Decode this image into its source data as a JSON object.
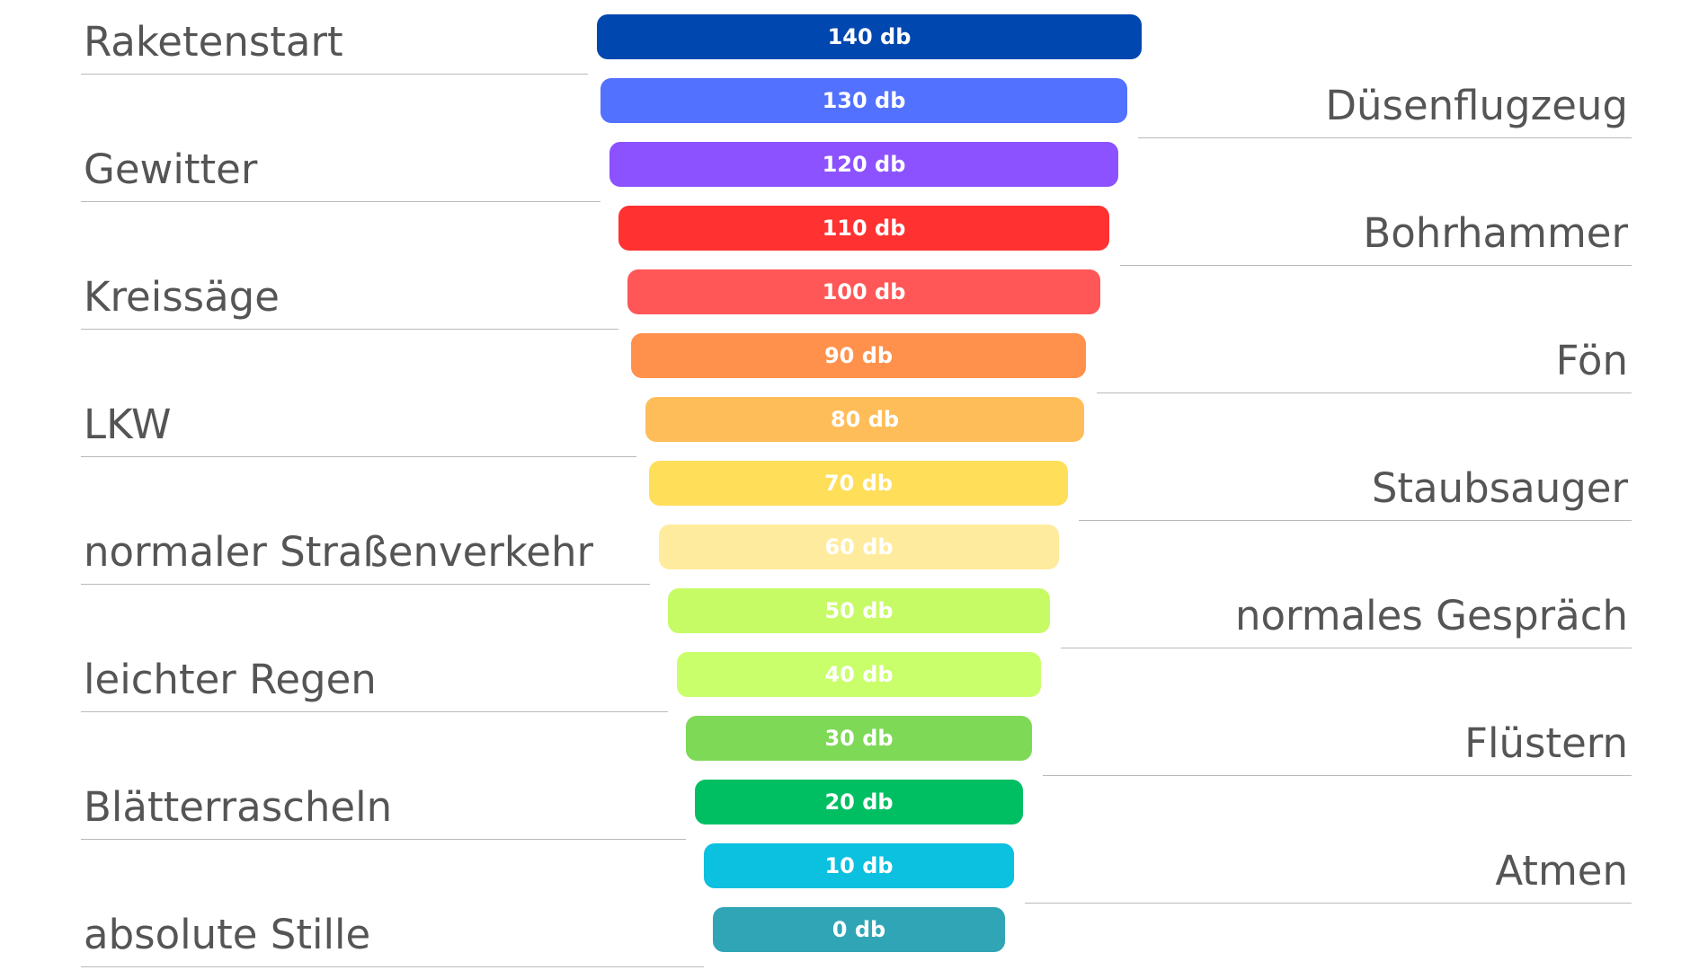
{
  "levels": [
    {
      "value": "140 db",
      "color": "#0047af",
      "label": "Raketenstart",
      "side": "left"
    },
    {
      "value": "130 db",
      "color": "#5271ff",
      "label": "Düsenflugzeug",
      "side": "right"
    },
    {
      "value": "120 db",
      "color": "#8c52ff",
      "label": "Gewitter",
      "side": "left"
    },
    {
      "value": "110 db",
      "color": "#ff3131",
      "label": "Bohrhammer",
      "side": "right"
    },
    {
      "value": "100 db",
      "color": "#ff5757",
      "label": "Kreissäge",
      "side": "left"
    },
    {
      "value": "90 db",
      "color": "#ff914d",
      "label": "Fön",
      "side": "right"
    },
    {
      "value": "80 db",
      "color": "#ffbd59",
      "label": "LKW",
      "side": "left"
    },
    {
      "value": "70 db",
      "color": "#ffde59",
      "label": "Staubsauger",
      "side": "right"
    },
    {
      "value": "60 db",
      "color": "#ffeb9d",
      "label": "normaler Straßenverkehr",
      "side": "left"
    },
    {
      "value": "50 db",
      "color": "#c7fb66",
      "label": "normales Gespräch",
      "side": "right"
    },
    {
      "value": "40 db",
      "color": "#c9ff6a",
      "label": "leichter Regen",
      "side": "left"
    },
    {
      "value": "30 db",
      "color": "#7ed957",
      "label": "Flüstern",
      "side": "right"
    },
    {
      "value": "20 db",
      "color": "#00bf63",
      "label": "Blätterrascheln",
      "side": "left"
    },
    {
      "value": "10 db",
      "color": "#0cc0df",
      "label": "Atmen",
      "side": "right"
    },
    {
      "value": "0 db",
      "color": "#2fa5b5",
      "label": "absolute Stille",
      "side": "left"
    }
  ]
}
